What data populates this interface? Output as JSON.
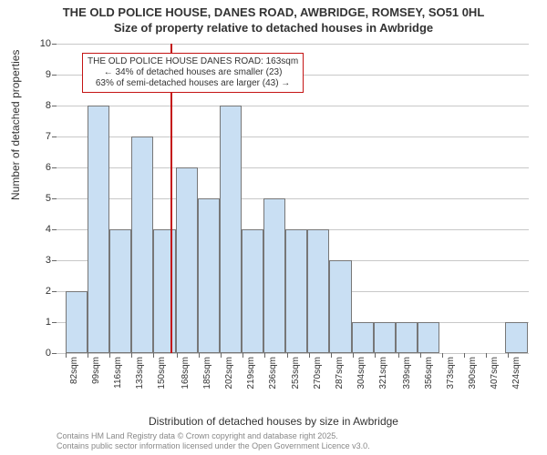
{
  "title_line1": "THE OLD POLICE HOUSE, DANES ROAD, AWBRIDGE, ROMSEY, SO51 0HL",
  "title_line2": "Size of property relative to detached houses in Awbridge",
  "chart": {
    "type": "histogram",
    "ylabel": "Number of detached properties",
    "xlabel": "Distribution of detached houses by size in Awbridge",
    "ylim": [
      0,
      10
    ],
    "ytick_step": 1,
    "background_color": "#ffffff",
    "grid_color": "#c8c8c8",
    "axis_color": "#666666",
    "bar_color": "#c9dff3",
    "bar_border": "#777777",
    "ref_line_color": "#c41414",
    "ref_line_x": 163,
    "label_fontsize": 12,
    "tick_fontsize": 10,
    "title_fontsize": 13,
    "x_ticks": [
      82,
      99,
      116,
      133,
      150,
      168,
      185,
      202,
      219,
      236,
      253,
      270,
      287,
      304,
      321,
      339,
      356,
      373,
      390,
      407,
      424
    ],
    "x_tick_suffix": "sqm",
    "bars": [
      {
        "x": 82,
        "w": 17,
        "h": 2
      },
      {
        "x": 99,
        "w": 17,
        "h": 8
      },
      {
        "x": 116,
        "w": 17,
        "h": 4
      },
      {
        "x": 133,
        "w": 17,
        "h": 7
      },
      {
        "x": 150,
        "w": 17,
        "h": 4
      },
      {
        "x": 167,
        "w": 17,
        "h": 6
      },
      {
        "x": 184,
        "w": 17,
        "h": 5
      },
      {
        "x": 201,
        "w": 17,
        "h": 8
      },
      {
        "x": 218,
        "w": 17,
        "h": 4
      },
      {
        "x": 235,
        "w": 17,
        "h": 5
      },
      {
        "x": 252,
        "w": 17,
        "h": 4
      },
      {
        "x": 269,
        "w": 17,
        "h": 4
      },
      {
        "x": 286,
        "w": 17,
        "h": 3
      },
      {
        "x": 303,
        "w": 17,
        "h": 1
      },
      {
        "x": 320,
        "w": 17,
        "h": 1
      },
      {
        "x": 337,
        "w": 17,
        "h": 1
      },
      {
        "x": 354,
        "w": 17,
        "h": 1
      },
      {
        "x": 371,
        "w": 17,
        "h": 0
      },
      {
        "x": 388,
        "w": 17,
        "h": 0
      },
      {
        "x": 405,
        "w": 17,
        "h": 0
      },
      {
        "x": 422,
        "w": 17,
        "h": 1
      }
    ],
    "callout": {
      "line1": "THE OLD POLICE HOUSE DANES ROAD: 163sqm",
      "line2": "← 34% of detached houses are smaller (23)",
      "line3": "63% of semi-detached houses are larger (43) →"
    }
  },
  "footer_line1": "Contains HM Land Registry data © Crown copyright and database right 2025.",
  "footer_line2": "Contains public sector information licensed under the Open Government Licence v3.0."
}
